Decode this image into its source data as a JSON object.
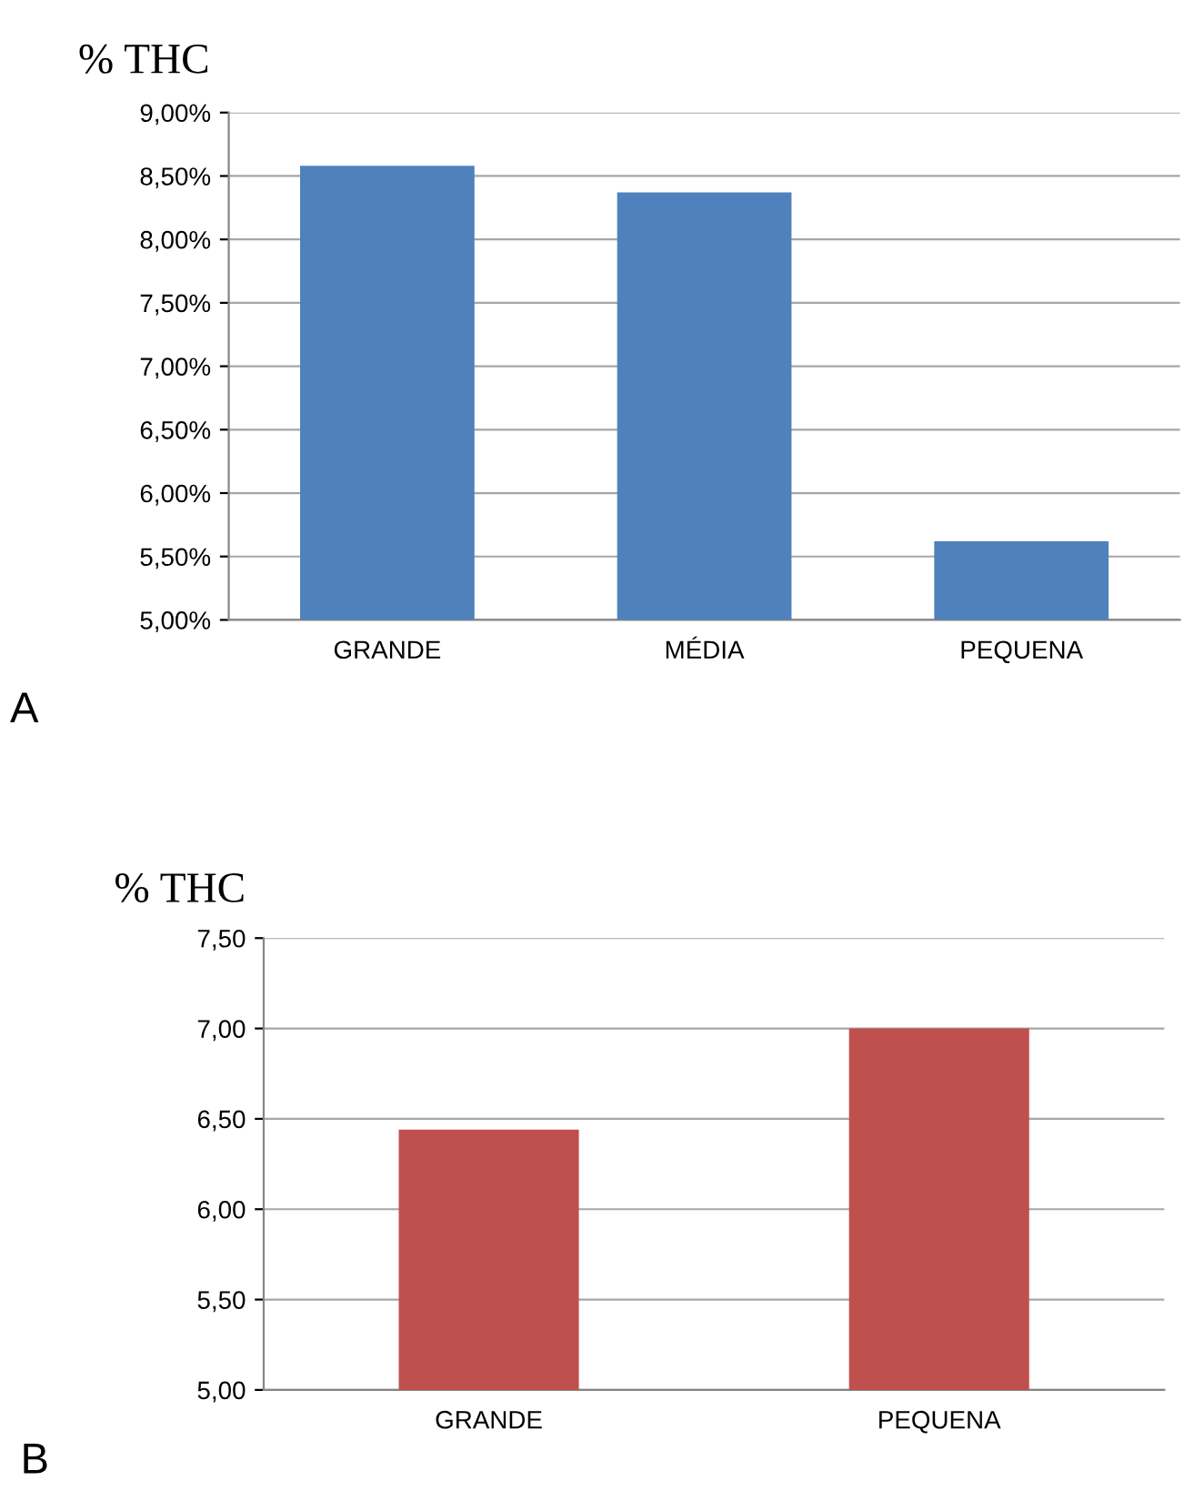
{
  "chart_data": [
    {
      "type": "bar",
      "ylabel": "% THC",
      "categories": [
        "GRANDE",
        "MÉDIA",
        "PEQUENA"
      ],
      "values": [
        8.58,
        8.37,
        5.62
      ],
      "color": "#4f81bd",
      "ylim": [
        5,
        9
      ],
      "yticks": [
        {
          "value": 5,
          "label": "5,00%"
        },
        {
          "value": 5.5,
          "label": "5,50%"
        },
        {
          "value": 6,
          "label": "6,00%"
        },
        {
          "value": 6.5,
          "label": "6,50%"
        },
        {
          "value": 7,
          "label": "7,00%"
        },
        {
          "value": 7.5,
          "label": "7,50%"
        },
        {
          "value": 8,
          "label": "8,00%"
        },
        {
          "value": 8.5,
          "label": "8,50%"
        },
        {
          "value": 9,
          "label": "9,00%"
        }
      ],
      "grid": "y",
      "annotations": [
        "A"
      ]
    },
    {
      "type": "bar",
      "ylabel": "% THC",
      "categories": [
        "GRANDE",
        "PEQUENA"
      ],
      "values": [
        6.44,
        7.0
      ],
      "color": "#c0504d",
      "ylim": [
        5,
        7.5
      ],
      "yticks": [
        {
          "value": 5,
          "label": "5,00"
        },
        {
          "value": 5.5,
          "label": "5,50"
        },
        {
          "value": 6,
          "label": "6,00"
        },
        {
          "value": 6.5,
          "label": "6,50"
        },
        {
          "value": 7,
          "label": "7,00"
        },
        {
          "value": 7.5,
          "label": "7,50"
        }
      ],
      "grid": "y",
      "annotations": [
        "B"
      ]
    }
  ]
}
